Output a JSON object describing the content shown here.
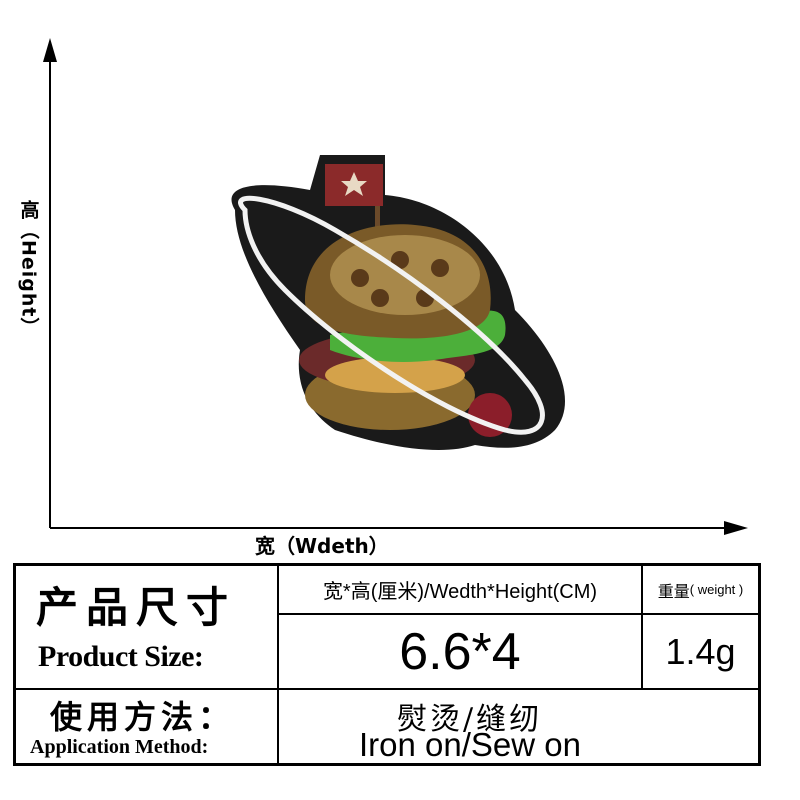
{
  "axes": {
    "y_label": "高（Height）",
    "x_label": "宽（Wdeth）"
  },
  "product": {
    "description": "Embroidered patch: hamburger planet with ring and flag",
    "colors": {
      "background": "#1a1a1a",
      "bun": "#8a6a2e",
      "lettuce": "#4caf3a",
      "meat": "#6b2a2a",
      "ring": "#f2f2f2",
      "flag": "#8b2a2a",
      "ball": "#8b1e2a"
    }
  },
  "spec_table": {
    "size_label_zh": "产品尺寸",
    "size_label_en": "Product Size:",
    "dims_header": "宽*高(厘米)/Wedth*Height(CM)",
    "dims_value": "6.6*4",
    "weight_header_zh": "重量",
    "weight_header_en": "( weight )",
    "weight_value": "1.4g",
    "method_label_zh": "使用方法：",
    "method_label_en": "Application Method:",
    "method_value_zh": "熨烫/缝纫",
    "method_value_en": "Iron on/Sew on"
  }
}
